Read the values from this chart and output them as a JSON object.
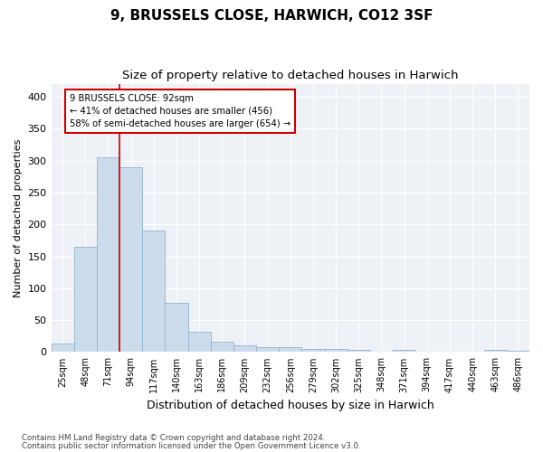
{
  "title": "9, BRUSSELS CLOSE, HARWICH, CO12 3SF",
  "subtitle": "Size of property relative to detached houses in Harwich",
  "xlabel": "Distribution of detached houses by size in Harwich",
  "ylabel": "Number of detached properties",
  "categories": [
    "25sqm",
    "48sqm",
    "71sqm",
    "94sqm",
    "117sqm",
    "140sqm",
    "163sqm",
    "186sqm",
    "209sqm",
    "232sqm",
    "256sqm",
    "279sqm",
    "302sqm",
    "325sqm",
    "348sqm",
    "371sqm",
    "394sqm",
    "417sqm",
    "440sqm",
    "463sqm",
    "486sqm"
  ],
  "values": [
    13,
    165,
    305,
    290,
    190,
    77,
    32,
    16,
    10,
    8,
    8,
    5,
    5,
    3,
    0,
    3,
    0,
    0,
    0,
    3,
    2
  ],
  "bar_color": "#ccdcec",
  "bar_edge_color": "#90b4cc",
  "highlight_line_color": "#cc0000",
  "annotation_line1": "9 BRUSSELS CLOSE: 92sqm",
  "annotation_line2": "← 41% of detached houses are smaller (456)",
  "annotation_line3": "58% of semi-detached houses are larger (654) →",
  "annotation_box_color": "#cc0000",
  "ylim": [
    0,
    420
  ],
  "yticks": [
    0,
    50,
    100,
    150,
    200,
    250,
    300,
    350,
    400
  ],
  "background_color": "#eef2f7",
  "footer_line1": "Contains HM Land Registry data © Crown copyright and database right 2024.",
  "footer_line2": "Contains public sector information licensed under the Open Government Licence v3.0.",
  "title_fontsize": 11,
  "subtitle_fontsize": 9.5,
  "xlabel_fontsize": 9,
  "ylabel_fontsize": 8
}
